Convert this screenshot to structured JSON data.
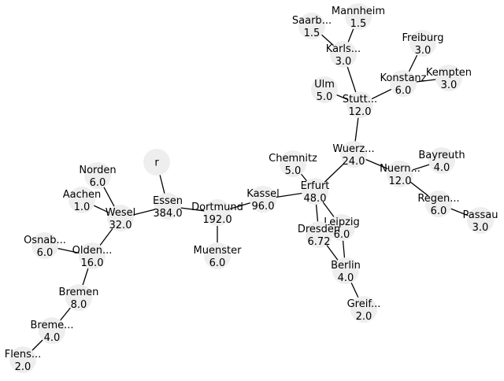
{
  "colors": {
    "node_fill": "#eeeeee",
    "edge": "#000000",
    "text": "#000000",
    "background": "#ffffff"
  },
  "nodes": [
    {
      "id": "r",
      "label": "r",
      "value": ""
    },
    {
      "id": "essen",
      "label": "Essen",
      "value": "384.0"
    },
    {
      "id": "dortmund",
      "label": "Dortmund",
      "value": "192.0"
    },
    {
      "id": "muenster",
      "label": "Muenster",
      "value": "6.0"
    },
    {
      "id": "kassel",
      "label": "Kassel",
      "value": "96.0"
    },
    {
      "id": "erfurt",
      "label": "Erfurt",
      "value": "48.0"
    },
    {
      "id": "chemnitz",
      "label": "Chemnitz",
      "value": "5.0"
    },
    {
      "id": "wuerz",
      "label": "Wuerz...",
      "value": "24.0"
    },
    {
      "id": "stutt",
      "label": "Stutt...",
      "value": "12.0"
    },
    {
      "id": "ulm",
      "label": "Ulm",
      "value": "5.0"
    },
    {
      "id": "karls",
      "label": "Karls...",
      "value": "3.0"
    },
    {
      "id": "saarb",
      "label": "Saarb...",
      "value": "1.5"
    },
    {
      "id": "mannheim",
      "label": "Mannheim",
      "value": "1.5"
    },
    {
      "id": "konstanz",
      "label": "Konstanz",
      "value": "6.0"
    },
    {
      "id": "freiburg",
      "label": "Freiburg",
      "value": "3.0"
    },
    {
      "id": "kempten",
      "label": "Kempten",
      "value": "3.0"
    },
    {
      "id": "nuern",
      "label": "Nuern...",
      "value": "12.0"
    },
    {
      "id": "bayreuth",
      "label": "Bayreuth",
      "value": "4.0"
    },
    {
      "id": "regen",
      "label": "Regen...",
      "value": "6.0"
    },
    {
      "id": "passau",
      "label": "Passau",
      "value": "3.0"
    },
    {
      "id": "leipzig",
      "label": "Leipzig",
      "value": "6.0"
    },
    {
      "id": "dresden",
      "label": "Dresden",
      "value": "6.72"
    },
    {
      "id": "berlin",
      "label": "Berlin",
      "value": "4.0"
    },
    {
      "id": "greif",
      "label": "Greif...",
      "value": "2.0"
    },
    {
      "id": "wesel",
      "label": "Wesel",
      "value": "32.0"
    },
    {
      "id": "norden",
      "label": "Norden",
      "value": "6.0"
    },
    {
      "id": "aachen",
      "label": "Aachen",
      "value": "1.0"
    },
    {
      "id": "olden",
      "label": "Olden...",
      "value": "16.0"
    },
    {
      "id": "osnab",
      "label": "Osnab...",
      "value": "6.0"
    },
    {
      "id": "bremen",
      "label": "Bremen",
      "value": "8.0"
    },
    {
      "id": "breme",
      "label": "Breme...",
      "value": "4.0"
    },
    {
      "id": "flens",
      "label": "Flens...",
      "value": "2.0"
    }
  ],
  "edges": [
    [
      "r",
      "essen"
    ],
    [
      "essen",
      "dortmund"
    ],
    [
      "essen",
      "wesel"
    ],
    [
      "dortmund",
      "muenster"
    ],
    [
      "dortmund",
      "kassel"
    ],
    [
      "kassel",
      "erfurt"
    ],
    [
      "erfurt",
      "chemnitz"
    ],
    [
      "erfurt",
      "wuerz"
    ],
    [
      "erfurt",
      "leipzig"
    ],
    [
      "erfurt",
      "dresden"
    ],
    [
      "wuerz",
      "stutt"
    ],
    [
      "wuerz",
      "nuern"
    ],
    [
      "stutt",
      "ulm"
    ],
    [
      "stutt",
      "karls"
    ],
    [
      "stutt",
      "konstanz"
    ],
    [
      "karls",
      "saarb"
    ],
    [
      "karls",
      "mannheim"
    ],
    [
      "konstanz",
      "freiburg"
    ],
    [
      "konstanz",
      "kempten"
    ],
    [
      "nuern",
      "bayreuth"
    ],
    [
      "nuern",
      "regen"
    ],
    [
      "regen",
      "passau"
    ],
    [
      "leipzig",
      "berlin"
    ],
    [
      "dresden",
      "berlin"
    ],
    [
      "berlin",
      "greif"
    ],
    [
      "wesel",
      "norden"
    ],
    [
      "wesel",
      "aachen"
    ],
    [
      "wesel",
      "olden"
    ],
    [
      "olden",
      "osnab"
    ],
    [
      "olden",
      "bremen"
    ],
    [
      "bremen",
      "breme"
    ],
    [
      "breme",
      "flens"
    ]
  ]
}
